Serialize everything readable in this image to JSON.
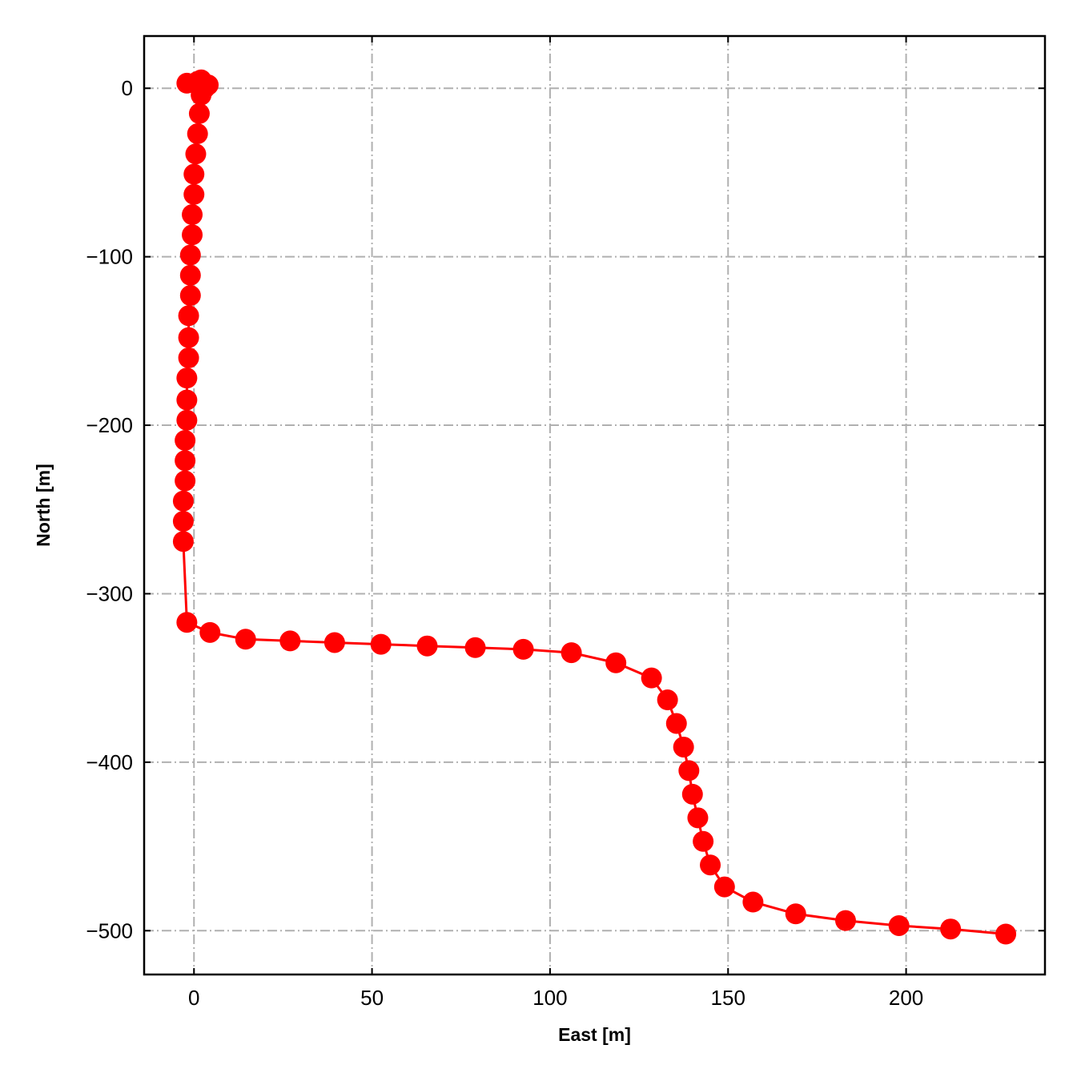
{
  "chart_data": {
    "type": "scatter",
    "title": "",
    "xlabel": "East [m]",
    "ylabel": "North [m]",
    "xlim": [
      -14,
      239
    ],
    "ylim": [
      -526,
      31
    ],
    "xticks": [
      0,
      50,
      100,
      150,
      200
    ],
    "yticks": [
      0,
      -100,
      -200,
      -300,
      -400,
      -500
    ],
    "xtick_labels": [
      "0",
      "50",
      "100",
      "150",
      "200"
    ],
    "ytick_labels": [
      "0",
      "−100",
      "−200",
      "−300",
      "−400",
      "−500"
    ],
    "grid": true,
    "grid_style": "dash-dot",
    "line_color": "#ff0000",
    "marker_color": "#ff0000",
    "series": [
      {
        "style": "line-with-markers",
        "x": [
          -2,
          1,
          2,
          3,
          4,
          2,
          1.5,
          1,
          0.5,
          0,
          0,
          -0.5,
          -0.5,
          -1,
          -1,
          -1,
          -1.5,
          -1.5,
          -1.5,
          -2,
          -2,
          -2,
          -2.5,
          -2.5,
          -2.5,
          -3,
          -3,
          -3,
          -2,
          4.5,
          14.5,
          27,
          39.5,
          52.5,
          65.5,
          79,
          92.5,
          106,
          118.5,
          128.5,
          133,
          135.5,
          137.5,
          139,
          140,
          141.5,
          143,
          145,
          149,
          157,
          169,
          183,
          198,
          212.5,
          228
        ],
        "y": [
          3,
          4,
          5,
          0,
          2,
          -4,
          -15,
          -27,
          -39,
          -51,
          -63,
          -75,
          -87,
          -99,
          -111,
          -123,
          -135,
          -148,
          -160,
          -172,
          -185,
          -197,
          -209,
          -221,
          -233,
          -245,
          -257,
          -269,
          -317,
          -323,
          -327,
          -328,
          -329,
          -330,
          -331,
          -332,
          -333,
          -335,
          -341,
          -350,
          -363,
          -377,
          -391,
          -405,
          -419,
          -433,
          -447,
          -461,
          -474,
          -483,
          -490,
          -494,
          -497,
          -499,
          -502
        ]
      }
    ]
  }
}
